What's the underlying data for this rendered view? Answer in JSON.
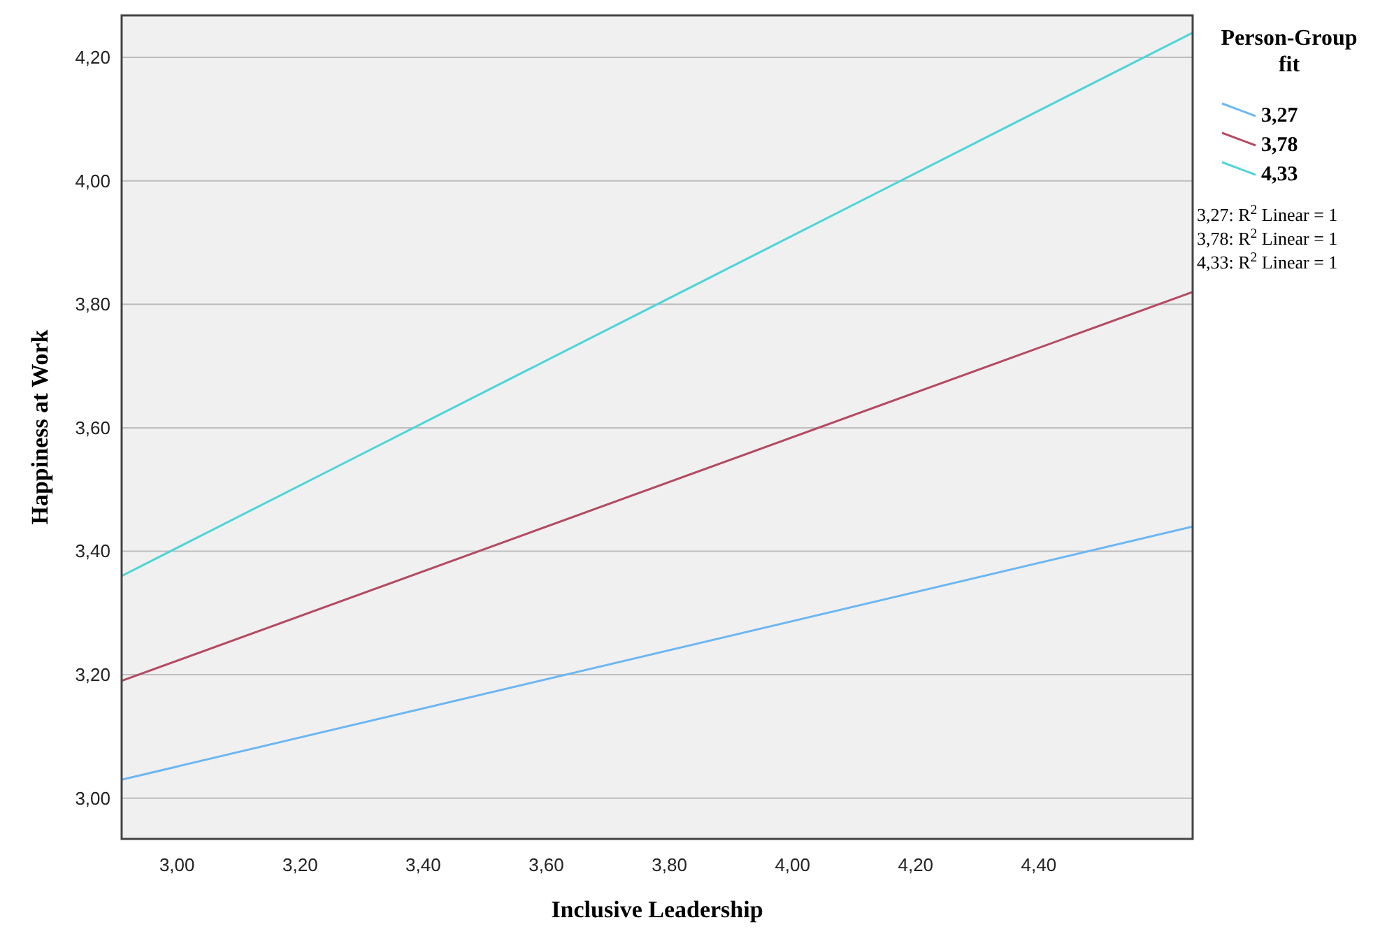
{
  "chart_data": {
    "type": "line",
    "xlabel": "Inclusive Leadership",
    "ylabel": "Happiness at Work",
    "legend_title": "Person-Group fit",
    "x": [
      2.91,
      4.65
    ],
    "series": [
      {
        "name": "3,27",
        "color": "#6db6f2",
        "values": [
          3.03,
          3.44
        ]
      },
      {
        "name": "3,78",
        "color": "#b44a62",
        "values": [
          3.19,
          3.82
        ]
      },
      {
        "name": "4,33",
        "color": "#4fd4d8",
        "values": [
          3.36,
          4.24
        ]
      }
    ],
    "xlim": [
      2.91,
      4.65
    ],
    "ylim": [
      2.934,
      4.268
    ],
    "xticks": [
      {
        "value": 3.0,
        "label": "3,00"
      },
      {
        "value": 3.2,
        "label": "3,20"
      },
      {
        "value": 3.4,
        "label": "3,40"
      },
      {
        "value": 3.6,
        "label": "3,60"
      },
      {
        "value": 3.8,
        "label": "3,80"
      },
      {
        "value": 4.0,
        "label": "4,00"
      },
      {
        "value": 4.2,
        "label": "4,20"
      },
      {
        "value": 4.4,
        "label": "4,40"
      }
    ],
    "yticks": [
      {
        "value": 3.0,
        "label": "3,00"
      },
      {
        "value": 3.2,
        "label": "3,20"
      },
      {
        "value": 3.4,
        "label": "3,40"
      },
      {
        "value": 3.6,
        "label": "3,60"
      },
      {
        "value": 3.8,
        "label": "3,80"
      },
      {
        "value": 4.0,
        "label": "4,00"
      },
      {
        "value": 4.2,
        "label": "4,20"
      }
    ],
    "grid": "y",
    "legend": "right",
    "marker": "none",
    "line_style": "solid",
    "annotations": [
      "3,27: R$^{2}$ Linear = 1",
      "3,78: R$^{2}$ Linear = 1",
      "4,33: R$^{2}$ Linear = 1"
    ]
  }
}
